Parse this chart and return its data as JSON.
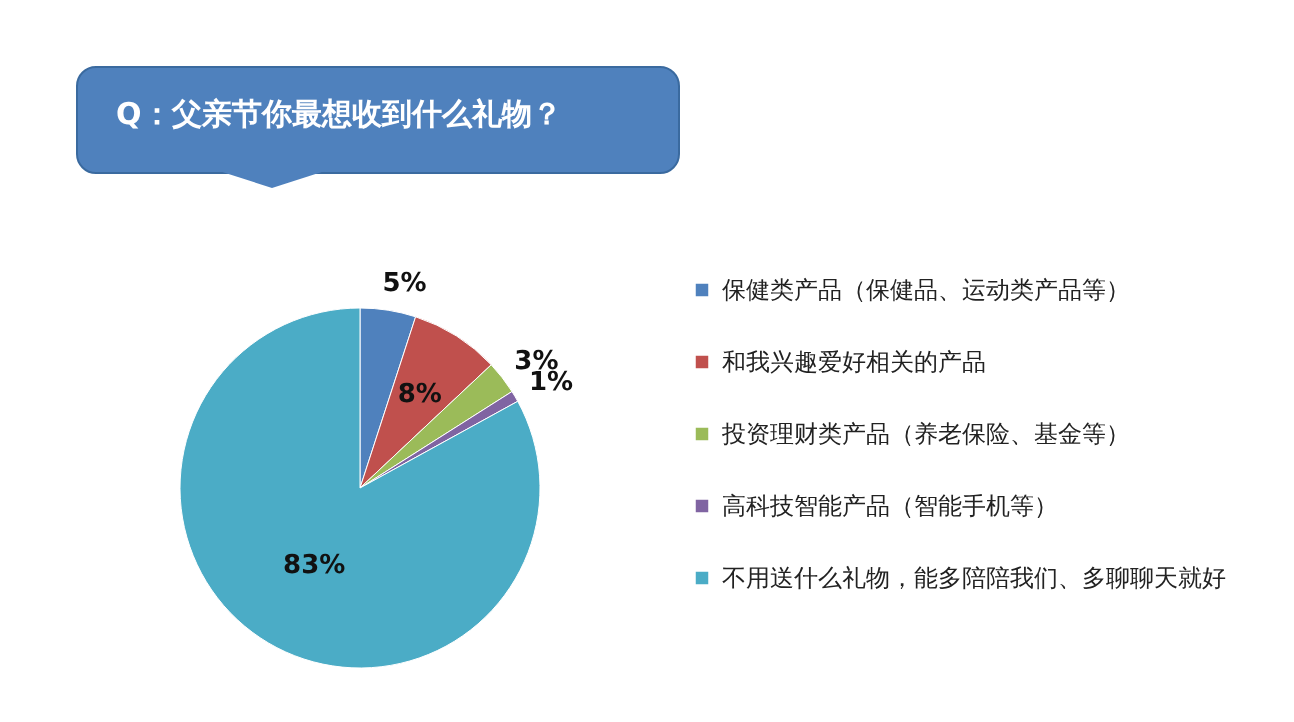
{
  "chart_data": {
    "type": "pie",
    "title": "Q：父亲节你最想收到什么礼物？",
    "categories": [
      "保健类产品（保健品、运动类产品等）",
      "和我兴趣爱好相关的产品",
      "投资理财类产品（养老保险、基金等）",
      "高科技智能产品（智能手机等）",
      "不用送什么礼物，能多陪陪我们、多聊聊天就好"
    ],
    "values": [
      5,
      8,
      3,
      1,
      83
    ],
    "colors": [
      "#4f81bd",
      "#c0504d",
      "#9bbb59",
      "#8064a2",
      "#4bacc6"
    ],
    "value_labels": [
      "5%",
      "8%",
      "3%",
      "1%",
      "83%"
    ],
    "legend": "right"
  }
}
